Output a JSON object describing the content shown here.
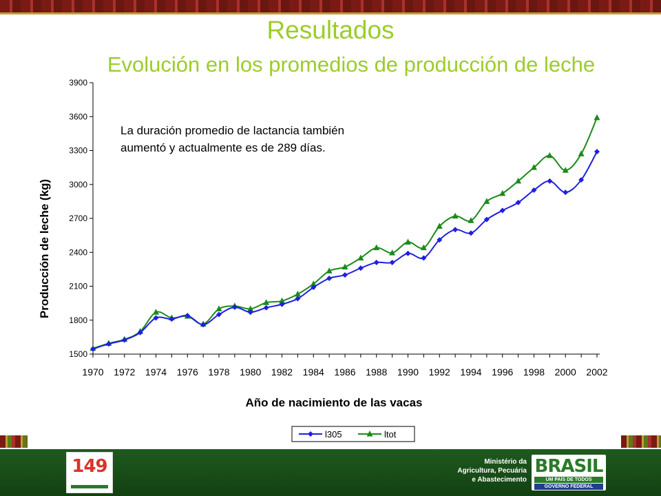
{
  "slide": {
    "title": "Resultados",
    "subtitle": "Evolución en los promedios de producción de leche"
  },
  "colors": {
    "title_green": "#9ccc2a",
    "series_blue": "#1f1fe0",
    "series_green": "#1a8a1a",
    "footer_green": "#1a4d1a"
  },
  "footer": {
    "logo_number": "149",
    "ministry_lines": [
      "Ministério da",
      "Agricultura, Pecuária",
      "e Abastecimento"
    ],
    "brasil_word": "BRASIL",
    "brasil_tagline": "UM PAÍS DE TODOS",
    "government": "GOVERNO FEDERAL"
  },
  "chart_data": {
    "type": "line",
    "xlabel": "Año de nacimiento de las vacas",
    "ylabel": "Producción de leche (kg)",
    "ylim": [
      1500,
      3900
    ],
    "yticks": [
      1500,
      1800,
      2100,
      2400,
      2700,
      3000,
      3300,
      3600,
      3900
    ],
    "xticks": [
      1970,
      1972,
      1974,
      1976,
      1978,
      1980,
      1982,
      1984,
      1986,
      1988,
      1990,
      1992,
      1994,
      1996,
      1998,
      2000,
      2002
    ],
    "x": [
      1970,
      1971,
      1972,
      1973,
      1974,
      1975,
      1976,
      1977,
      1978,
      1979,
      1980,
      1981,
      1982,
      1983,
      1984,
      1985,
      1986,
      1987,
      1988,
      1989,
      1990,
      1991,
      1992,
      1993,
      1994,
      1995,
      1996,
      1997,
      1998,
      1999,
      2000,
      2001,
      2002
    ],
    "annotation": "La duración promedio de lactancia también aumentó y actualmente es de 289 días.",
    "legend_position": "bottom",
    "series": [
      {
        "name": "l305",
        "color": "#1f1fe0",
        "marker": "diamond",
        "values": [
          1545,
          1590,
          1625,
          1690,
          1820,
          1810,
          1840,
          1760,
          1850,
          1915,
          1870,
          1910,
          1940,
          1990,
          2090,
          2170,
          2200,
          2260,
          2310,
          2310,
          2390,
          2350,
          2510,
          2600,
          2570,
          2690,
          2770,
          2840,
          2950,
          3030,
          2930,
          3040,
          3290
        ]
      },
      {
        "name": "ltot",
        "color": "#1a8a1a",
        "marker": "triangle",
        "values": [
          1550,
          1595,
          1630,
          1700,
          1870,
          1820,
          1835,
          1765,
          1900,
          1925,
          1900,
          1955,
          1970,
          2030,
          2120,
          2235,
          2270,
          2350,
          2440,
          2395,
          2490,
          2440,
          2630,
          2720,
          2680,
          2850,
          2920,
          3030,
          3150,
          3255,
          3125,
          3270,
          3590
        ]
      }
    ]
  }
}
